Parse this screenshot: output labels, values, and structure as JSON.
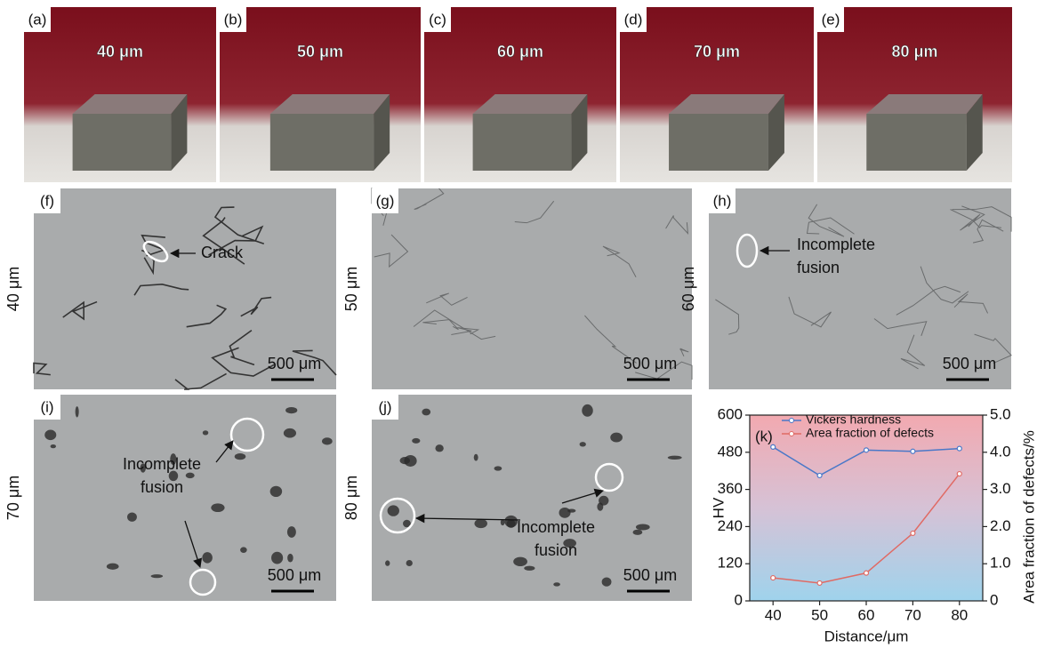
{
  "photos": [
    {
      "label": "(a)",
      "text": "40 μm"
    },
    {
      "label": "(b)",
      "text": "50 μm"
    },
    {
      "label": "(c)",
      "text": "60 μm"
    },
    {
      "label": "(d)",
      "text": "70 μm"
    },
    {
      "label": "(e)",
      "text": "80 μm"
    }
  ],
  "micrographs": [
    {
      "label": "(f)",
      "side_label": "40 μm",
      "scale_bar": "500 μm",
      "annotation_lines": [
        "Crack"
      ]
    },
    {
      "label": "(g)",
      "side_label": "50 μm",
      "scale_bar": "500 μm"
    },
    {
      "label": "(h)",
      "side_label": "60 μm",
      "scale_bar": "500 μm",
      "annotation_lines": [
        "Incomplete",
        "fusion"
      ]
    },
    {
      "label": "(i)",
      "side_label": "70 μm",
      "scale_bar": "500 μm",
      "annotation_lines": [
        "Incomplete",
        "fusion"
      ]
    },
    {
      "label": "(j)",
      "side_label": "80 μm",
      "scale_bar": "500 μm",
      "annotation_lines": [
        "Incomplete",
        "fusion"
      ]
    }
  ],
  "chart_data": {
    "type": "line",
    "label": "(k)",
    "x": [
      40,
      50,
      60,
      70,
      80
    ],
    "xlim": [
      35,
      85
    ],
    "xticks": [
      40,
      50,
      60,
      70,
      80
    ],
    "xlabel": "Distance/μm",
    "ylabel": "HV",
    "y2label": "Area fraction of defects/%",
    "ylim": [
      0,
      600
    ],
    "yticks": [
      0,
      120,
      240,
      360,
      480,
      600
    ],
    "y2lim": [
      0,
      5
    ],
    "y2ticks": [
      0,
      {
        "value": 1,
        "label": "1.0"
      },
      {
        "value": 2,
        "label": "2.0"
      },
      {
        "value": 3,
        "label": "3.0"
      },
      {
        "value": 4,
        "label": "4.0"
      },
      {
        "value": 5,
        "label": "5.0"
      }
    ],
    "legend": "upper left",
    "series": [
      {
        "name": "Vickers hardness",
        "color": "#4a78c8",
        "values": [
          497,
          405,
          487,
          483,
          492
        ]
      },
      {
        "name": "Area fraction of defects",
        "color": "#e06a64",
        "axis": "y2",
        "values": [
          0.62,
          0.48,
          0.75,
          1.82,
          3.42
        ]
      }
    ]
  }
}
